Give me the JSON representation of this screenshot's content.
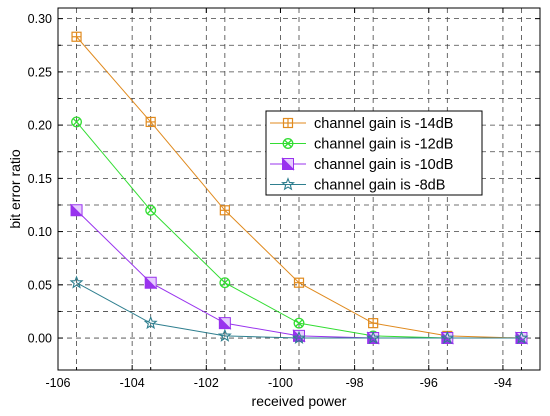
{
  "chart_data": {
    "type": "line",
    "title": "",
    "xlabel": "received power",
    "ylabel": "bit error ratio",
    "xlim": [
      -106,
      -93
    ],
    "ylim": [
      -0.03,
      0.31
    ],
    "xticks": [
      -106,
      -104,
      -102,
      -100,
      -98,
      -96,
      -94
    ],
    "xtick_labels": [
      "-106",
      "-104",
      "-102",
      "-100",
      "-98",
      "-96",
      "-94"
    ],
    "yticks": [
      0.0,
      0.05,
      0.1,
      0.15,
      0.2,
      0.25,
      0.3
    ],
    "ytick_labels": [
      "0.00",
      "0.05",
      "0.10",
      "0.15",
      "0.20",
      "0.25",
      "0.30"
    ],
    "grid": true,
    "legend_position": "center-right",
    "x": [
      -105.5,
      -103.5,
      -101.5,
      -99.5,
      -97.5,
      -95.5,
      -93.5
    ],
    "series": [
      {
        "name": "channel gain is -14dB",
        "color": "#e08a1e",
        "marker": "square-cross",
        "values": [
          0.283,
          0.203,
          0.12,
          0.052,
          0.014,
          0.002,
          0.0
        ]
      },
      {
        "name": "channel gain is -12dB",
        "color": "#33dd33",
        "marker": "circle-x",
        "values": [
          0.203,
          0.12,
          0.052,
          0.014,
          0.002,
          0.0,
          0.0
        ]
      },
      {
        "name": "channel gain is -10dB",
        "color": "#9933ee",
        "marker": "triangle-left-filled",
        "values": [
          0.12,
          0.052,
          0.014,
          0.002,
          0.0,
          0.0,
          0.0
        ]
      },
      {
        "name": "channel gain is -8dB",
        "color": "#2f7f8f",
        "marker": "star",
        "values": [
          0.052,
          0.014,
          0.002,
          0.0,
          0.0,
          0.0,
          0.0
        ]
      }
    ]
  }
}
